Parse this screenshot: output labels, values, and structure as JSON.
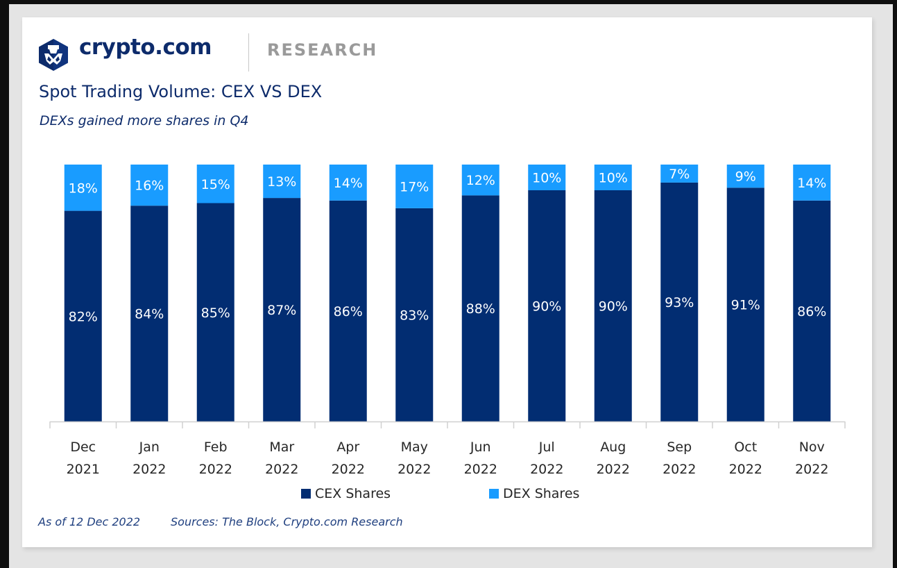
{
  "header": {
    "brand": "crypto.com",
    "section": "RESEARCH",
    "logo_icon": "crypto-com-lion-hexagon-icon"
  },
  "colors": {
    "cex": "#022d72",
    "dex": "#199cff",
    "brand": "#0d2b6b",
    "axis": "#d0d0d0"
  },
  "chart_data": {
    "type": "bar",
    "stacked": true,
    "normalized_percent": true,
    "title": "Spot Trading Volume: CEX VS DEX",
    "subtitle": "DEXs gained more shares in Q4",
    "xlabel": "",
    "ylabel": "",
    "ylim": [
      0,
      100
    ],
    "grid": false,
    "legend_position": "bottom",
    "categories": [
      [
        "Dec",
        "2021"
      ],
      [
        "Jan",
        "2022"
      ],
      [
        "Feb",
        "2022"
      ],
      [
        "Mar",
        "2022"
      ],
      [
        "Apr",
        "2022"
      ],
      [
        "May",
        "2022"
      ],
      [
        "Jun",
        "2022"
      ],
      [
        "Jul",
        "2022"
      ],
      [
        "Aug",
        "2022"
      ],
      [
        "Sep",
        "2022"
      ],
      [
        "Oct",
        "2022"
      ],
      [
        "Nov",
        "2022"
      ]
    ],
    "series": [
      {
        "name": "CEX Shares",
        "values": [
          82,
          84,
          85,
          87,
          86,
          83,
          88,
          90,
          90,
          93,
          91,
          86
        ]
      },
      {
        "name": "DEX Shares",
        "values": [
          18,
          16,
          15,
          13,
          14,
          17,
          12,
          10,
          10,
          7,
          9,
          14
        ]
      }
    ]
  },
  "legend": {
    "cex_label": "CEX Shares",
    "dex_label": "DEX Shares"
  },
  "footer": {
    "as_of": "As of 12 Dec 2022",
    "sources": "Sources: The Block, Crypto.com Research"
  }
}
